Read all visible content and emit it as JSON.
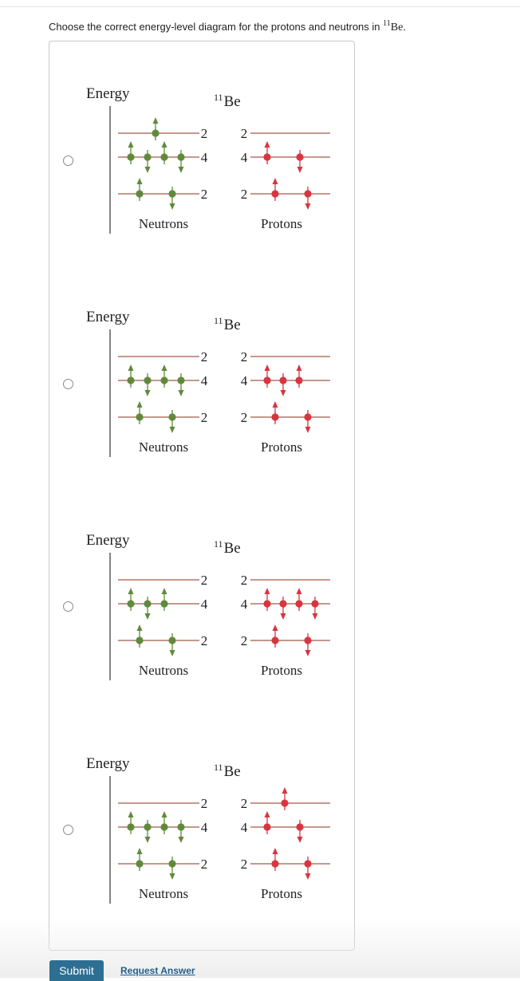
{
  "question": {
    "prefix": "Choose the correct energy-level diagram for the protons and neutrons in ",
    "mass_number": "11",
    "element": "Be",
    "suffix": "."
  },
  "diagram_labels": {
    "energy": "Energy",
    "nucleus_mass": "11",
    "nucleus_element": "Be",
    "neutrons": "Neutrons",
    "protons": "Protons",
    "capacity_top": "2",
    "capacity_mid": "4",
    "capacity_bottom": "2"
  },
  "colors": {
    "neutron": "#5f8a3c",
    "proton": "#d8353f",
    "level_line": "#a25a48",
    "axis": "#333333"
  },
  "options": [
    {
      "id": "A",
      "neutrons": {
        "bottom": [
          "up",
          "down"
        ],
        "mid": [
          "up",
          "down",
          "up",
          "down"
        ],
        "top": [
          "up"
        ]
      },
      "protons": {
        "bottom": [
          "up",
          "down"
        ],
        "mid": [
          "up",
          "down"
        ],
        "top": []
      }
    },
    {
      "id": "B",
      "neutrons": {
        "bottom": [
          "up",
          "down"
        ],
        "mid": [
          "up",
          "down",
          "up",
          "down"
        ],
        "top": []
      },
      "protons": {
        "bottom": [
          "up",
          "down"
        ],
        "mid": [
          "up",
          "down",
          "up"
        ],
        "top": []
      }
    },
    {
      "id": "C",
      "neutrons": {
        "bottom": [
          "up",
          "down"
        ],
        "mid": [
          "up",
          "down",
          "up"
        ],
        "top": []
      },
      "protons": {
        "bottom": [
          "up",
          "down"
        ],
        "mid": [
          "up",
          "down",
          "up",
          "down"
        ],
        "top": []
      }
    },
    {
      "id": "D",
      "neutrons": {
        "bottom": [
          "up",
          "down"
        ],
        "mid": [
          "up",
          "down",
          "up",
          "down"
        ],
        "top": []
      },
      "protons": {
        "bottom": [
          "up",
          "down"
        ],
        "mid": [
          "up",
          "down"
        ],
        "top": [
          "up"
        ]
      }
    }
  ],
  "buttons": {
    "submit": "Submit",
    "request_answer": "Request Answer"
  }
}
